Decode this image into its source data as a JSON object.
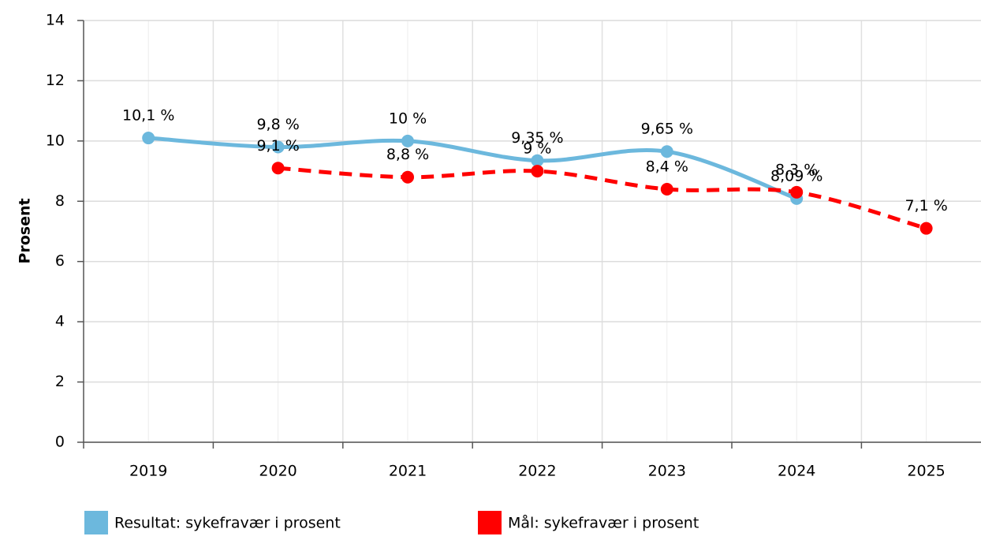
{
  "chart_data": {
    "type": "line",
    "ylabel": "Prosent",
    "categories": [
      "2019",
      "2020",
      "2021",
      "2022",
      "2023",
      "2024",
      "2025"
    ],
    "series": [
      {
        "name": "Resultat: sykefravær i prosent",
        "color": "#6cb8dd",
        "dash": false,
        "values": [
          10.1,
          9.8,
          10,
          9.35,
          9.65,
          8.09,
          null
        ],
        "value_labels": [
          "10,1 %",
          "9,8 %",
          "10 %",
          "9,35 %",
          "9,65 %",
          "8,09 %",
          null
        ]
      },
      {
        "name": "Mål: sykefravær i prosent",
        "color": "#ff0000",
        "dash": true,
        "values": [
          null,
          9.1,
          8.8,
          9,
          8.4,
          8.3,
          7.1
        ],
        "value_labels": [
          null,
          "9,1 %",
          "8,8 %",
          "9 %",
          "8,4 %",
          "8,3 %",
          "7,1 %"
        ]
      }
    ],
    "ylim": [
      0,
      14
    ],
    "yticks": [
      0,
      2,
      4,
      6,
      8,
      10,
      12,
      14
    ],
    "grid": true
  }
}
